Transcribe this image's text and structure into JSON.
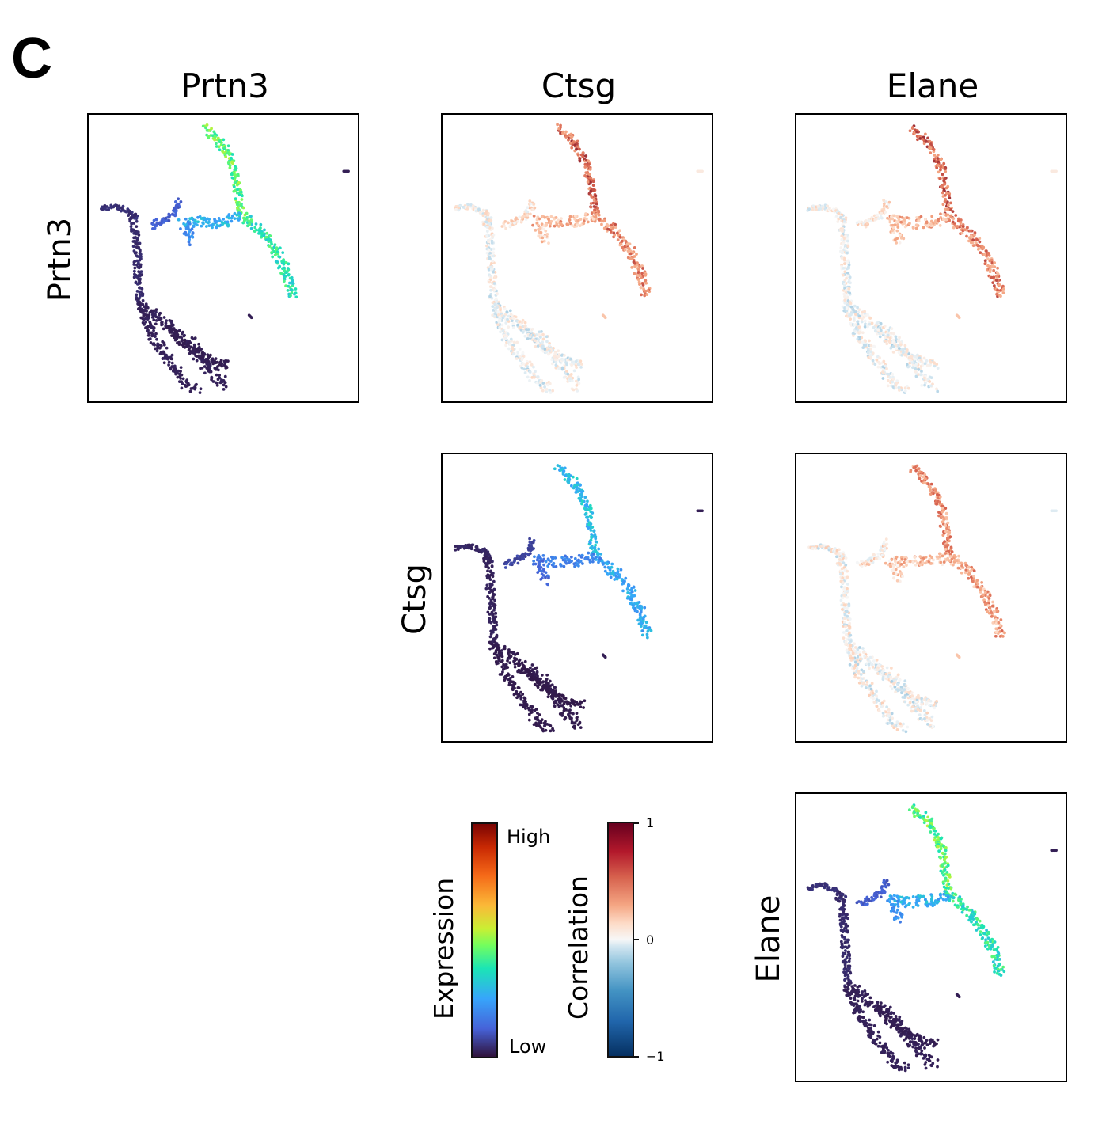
{
  "panel_label": "C",
  "chart_data": {
    "type": "scatter",
    "description_type": "gene-gene correlation matrix of embedding scatter plots",
    "columns": [
      "Prtn3",
      "Ctsg",
      "Elane"
    ],
    "rows": [
      "Prtn3",
      "Ctsg",
      "Elane"
    ],
    "cells": [
      {
        "row": "Prtn3",
        "col": "Prtn3",
        "kind": "expression"
      },
      {
        "row": "Prtn3",
        "col": "Ctsg",
        "kind": "correlation"
      },
      {
        "row": "Prtn3",
        "col": "Elane",
        "kind": "correlation"
      },
      {
        "row": "Ctsg",
        "col": "Ctsg",
        "kind": "expression"
      },
      {
        "row": "Ctsg",
        "col": "Elane",
        "kind": "correlation"
      },
      {
        "row": "Elane",
        "col": "Elane",
        "kind": "expression"
      }
    ],
    "colorbars": [
      {
        "label": "Expression",
        "high_label": "High",
        "low_label": "Low",
        "colormap": "turbo"
      },
      {
        "label": "Correlation",
        "ticks": [
          "1",
          "0",
          "−1"
        ],
        "range": [
          -1,
          1
        ],
        "colormap": "RdBu_r"
      }
    ]
  },
  "colors": {
    "low_expr": "#2b1a4a",
    "mid_expr": "#3b6fe0",
    "high_expr": "#30d5a0",
    "pos_corr": "#c8503a",
    "neg_corr": "#bcd6e8"
  }
}
